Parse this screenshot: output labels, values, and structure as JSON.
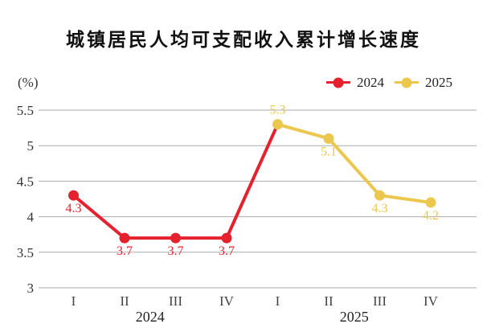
{
  "chart_data": {
    "type": "line",
    "title": "城镇居民人均可支配收入累计增长速度",
    "unit_label": "(%)",
    "ylim": [
      3,
      5.5
    ],
    "yticks": [
      "3",
      "3.5",
      "4",
      "4.5",
      "5",
      "5.5"
    ],
    "grid": true,
    "gridline_color": "#ababab",
    "legend_position": "top-right",
    "categories": [
      "I",
      "II",
      "III",
      "IV",
      "I",
      "II",
      "III",
      "IV"
    ],
    "x_group_labels": [
      "2024",
      "2025"
    ],
    "series": [
      {
        "name": "2024",
        "color": "#e5212e",
        "values": [
          4.3,
          3.7,
          3.7,
          3.7
        ],
        "labels": [
          "4.3",
          "3.7",
          "3.7",
          "3.7"
        ],
        "label_pos": [
          "below",
          "below",
          "below",
          "below"
        ]
      },
      {
        "name": "2025",
        "color": "#ecc74e",
        "values": [
          5.3,
          5.1,
          4.3,
          4.2
        ],
        "labels": [
          "5.3",
          "5.1",
          "4.3",
          "4.2"
        ],
        "label_pos": [
          "above",
          "below",
          "below",
          "below"
        ]
      }
    ]
  }
}
